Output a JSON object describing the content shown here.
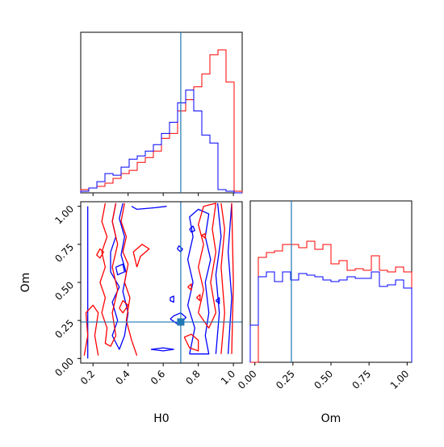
{
  "chart_data": [
    {
      "type": "histogram",
      "panel": "H0 marginal",
      "xlim": [
        0.13,
        1.05
      ],
      "truth_x": 0.7,
      "series": [
        {
          "color": "#ff0000",
          "bin_edges": [
            0.13,
            0.176,
            0.222,
            0.268,
            0.314,
            0.36,
            0.406,
            0.452,
            0.498,
            0.544,
            0.59,
            0.636,
            0.682,
            0.728,
            0.774,
            0.82,
            0.866,
            0.912,
            0.958,
            1.004,
            1.05
          ],
          "values": [
            0.02,
            0.03,
            0.04,
            0.06,
            0.09,
            0.12,
            0.14,
            0.19,
            0.22,
            0.26,
            0.34,
            0.37,
            0.51,
            0.58,
            0.66,
            0.74,
            0.86,
            0.89,
            0.69,
            0.01
          ]
        },
        {
          "color": "#0000ff",
          "bin_edges": [
            0.13,
            0.176,
            0.222,
            0.268,
            0.314,
            0.36,
            0.406,
            0.452,
            0.498,
            0.544,
            0.59,
            0.636,
            0.682,
            0.728,
            0.774,
            0.82,
            0.866,
            0.912,
            0.958,
            1.004,
            1.05
          ],
          "values": [
            0.01,
            0.03,
            0.07,
            0.12,
            0.11,
            0.16,
            0.21,
            0.23,
            0.26,
            0.3,
            0.37,
            0.44,
            0.56,
            0.64,
            0.51,
            0.36,
            0.31,
            0.02,
            0.01,
            0.0
          ]
        }
      ]
    },
    {
      "type": "histogram",
      "panel": "Om marginal",
      "xlim": [
        -0.03,
        1.03
      ],
      "truth_x": 0.24,
      "series": [
        {
          "color": "#ff0000",
          "bin_edges": [
            -0.03,
            0.023,
            0.076,
            0.129,
            0.182,
            0.235,
            0.288,
            0.341,
            0.394,
            0.447,
            0.5,
            0.553,
            0.606,
            0.659,
            0.712,
            0.765,
            0.818,
            0.871,
            0.924,
            0.977,
            1.03
          ],
          "values": [
            0.0,
            0.65,
            0.68,
            0.69,
            0.73,
            0.73,
            0.71,
            0.75,
            0.7,
            0.73,
            0.61,
            0.63,
            0.57,
            0.58,
            0.57,
            0.66,
            0.57,
            0.56,
            0.59,
            0.56
          ]
        },
        {
          "color": "#0000ff",
          "bin_edges": [
            -0.03,
            0.023,
            0.076,
            0.129,
            0.182,
            0.235,
            0.288,
            0.341,
            0.394,
            0.447,
            0.5,
            0.553,
            0.606,
            0.659,
            0.712,
            0.765,
            0.818,
            0.871,
            0.924,
            0.977,
            1.03
          ],
          "values": [
            0.23,
            0.53,
            0.56,
            0.5,
            0.56,
            0.51,
            0.55,
            0.54,
            0.53,
            0.51,
            0.5,
            0.51,
            0.53,
            0.52,
            0.52,
            0.56,
            0.47,
            0.48,
            0.51,
            0.46
          ]
        }
      ]
    },
    {
      "type": "contour",
      "panel": "Om vs H0",
      "xlabel": "H0",
      "ylabel": "Om",
      "xlim": [
        0.13,
        1.05
      ],
      "ylim": [
        -0.03,
        1.03
      ],
      "xticks": [
        "0.2",
        "0.4",
        "0.6",
        "0.8",
        "1.0"
      ],
      "xtick_values": [
        0.2,
        0.4,
        0.6,
        0.8,
        1.0
      ],
      "yticks": [
        "0.00",
        "0.25",
        "0.50",
        "0.75",
        "1.00"
      ],
      "ytick_values": [
        0.0,
        0.25,
        0.5,
        0.75,
        1.0
      ],
      "truth": [
        0.7,
        0.24
      ],
      "contours": [
        {
          "color": "#0000ff",
          "points": [
            [
              0.33,
              1.02
            ],
            [
              0.31,
              0.9
            ],
            [
              0.33,
              0.8
            ],
            [
              0.3,
              0.7
            ],
            [
              0.3,
              0.57
            ],
            [
              0.35,
              0.47
            ],
            [
              0.31,
              0.37
            ],
            [
              0.34,
              0.25
            ],
            [
              0.31,
              0.15
            ],
            [
              0.35,
              0.06
            ],
            [
              0.38,
              0.15
            ],
            [
              0.4,
              0.3
            ],
            [
              0.37,
              0.44
            ],
            [
              0.39,
              0.56
            ],
            [
              0.36,
              0.68
            ],
            [
              0.38,
              0.8
            ],
            [
              0.35,
              0.92
            ],
            [
              0.37,
              1.02
            ]
          ]
        },
        {
          "color": "#0000ff",
          "points": [
            [
              0.17,
              1.0
            ],
            [
              0.17,
              0.0
            ]
          ]
        },
        {
          "color": "#0000ff",
          "points": [
            [
              0.42,
              1.0
            ],
            [
              0.45,
              0.98
            ],
            [
              0.55,
              0.99
            ],
            [
              0.62,
              1.0
            ]
          ]
        },
        {
          "color": "#0000ff",
          "points": [
            [
              0.53,
              0.06
            ],
            [
              0.6,
              0.05
            ],
            [
              0.66,
              0.06
            ],
            [
              0.6,
              0.07
            ],
            [
              0.53,
              0.06
            ]
          ]
        },
        {
          "color": "#0000ff",
          "points": [
            [
              0.75,
              0.03
            ],
            [
              0.78,
              0.2
            ],
            [
              0.74,
              0.35
            ],
            [
              0.77,
              0.5
            ],
            [
              0.74,
              0.65
            ],
            [
              0.77,
              0.8
            ],
            [
              0.75,
              0.93
            ],
            [
              0.8,
              0.98
            ],
            [
              0.86,
              0.95
            ],
            [
              0.84,
              0.8
            ],
            [
              0.87,
              0.65
            ],
            [
              0.84,
              0.5
            ],
            [
              0.86,
              0.3
            ],
            [
              0.84,
              0.15
            ],
            [
              0.86,
              0.03
            ],
            [
              0.75,
              0.03
            ]
          ]
        },
        {
          "color": "#0000ff",
          "points": [
            [
              0.9,
              0.03
            ],
            [
              0.92,
              0.3
            ],
            [
              0.9,
              0.55
            ],
            [
              0.93,
              0.8
            ],
            [
              0.91,
              1.02
            ]
          ]
        },
        {
          "color": "#0000ff",
          "points": [
            [
              0.97,
              0.03
            ],
            [
              0.99,
              0.4
            ],
            [
              0.97,
              0.7
            ],
            [
              0.99,
              1.02
            ]
          ]
        },
        {
          "color": "#0000ff",
          "points": [
            [
              0.68,
              0.72
            ],
            [
              0.7,
              0.7
            ],
            [
              0.71,
              0.72
            ],
            [
              0.69,
              0.74
            ],
            [
              0.68,
              0.72
            ]
          ]
        },
        {
          "color": "#0000ff",
          "points": [
            [
              0.64,
              0.26
            ],
            [
              0.66,
              0.28
            ],
            [
              0.7,
              0.3
            ],
            [
              0.73,
              0.27
            ],
            [
              0.69,
              0.22
            ],
            [
              0.64,
              0.26
            ]
          ]
        },
        {
          "color": "#0000ff",
          "points": [
            [
              0.64,
              0.4
            ],
            [
              0.66,
              0.41
            ],
            [
              0.66,
              0.37
            ],
            [
              0.64,
              0.38
            ],
            [
              0.64,
              0.4
            ]
          ]
        },
        {
          "color": "#0000ff",
          "points": [
            [
              0.33,
              0.6
            ],
            [
              0.37,
              0.62
            ],
            [
              0.38,
              0.57
            ],
            [
              0.34,
              0.55
            ],
            [
              0.33,
              0.6
            ]
          ]
        },
        {
          "color": "#0000ff",
          "points": [
            [
              0.75,
              0.85
            ],
            [
              0.77,
              0.87
            ],
            [
              0.78,
              0.84
            ],
            [
              0.76,
              0.83
            ],
            [
              0.75,
              0.85
            ]
          ]
        },
        {
          "color": "#0000ff",
          "points": [
            [
              0.9,
              0.38
            ],
            [
              0.92,
              0.4
            ],
            [
              0.92,
              0.36
            ],
            [
              0.9,
              0.38
            ]
          ]
        },
        {
          "color": "#ff0000",
          "points": [
            [
              0.15,
              0.02
            ],
            [
              0.17,
              0.15
            ],
            [
              0.16,
              0.3
            ],
            [
              0.2,
              0.35
            ],
            [
              0.23,
              0.3
            ],
            [
              0.21,
              0.15
            ],
            [
              0.23,
              0.02
            ]
          ]
        },
        {
          "color": "#ff0000",
          "points": [
            [
              0.27,
              1.02
            ],
            [
              0.25,
              0.9
            ],
            [
              0.28,
              0.8
            ],
            [
              0.25,
              0.7
            ],
            [
              0.27,
              0.6
            ],
            [
              0.24,
              0.5
            ],
            [
              0.27,
              0.4
            ],
            [
              0.25,
              0.3
            ],
            [
              0.28,
              0.2
            ],
            [
              0.27,
              0.1
            ],
            [
              0.3,
              0.08
            ],
            [
              0.33,
              0.15
            ],
            [
              0.31,
              0.3
            ],
            [
              0.34,
              0.45
            ],
            [
              0.31,
              0.6
            ],
            [
              0.34,
              0.75
            ],
            [
              0.31,
              0.9
            ],
            [
              0.33,
              1.02
            ]
          ]
        },
        {
          "color": "#ff0000",
          "points": [
            [
              0.38,
              1.02
            ],
            [
              0.36,
              0.9
            ],
            [
              0.39,
              0.8
            ],
            [
              0.37,
              0.7
            ],
            [
              0.4,
              0.62
            ],
            [
              0.38,
              0.5
            ],
            [
              0.41,
              0.4
            ],
            [
              0.39,
              0.25
            ],
            [
              0.42,
              0.12
            ],
            [
              0.45,
              0.02
            ]
          ]
        },
        {
          "color": "#ff0000",
          "points": [
            [
              0.45,
              0.6
            ],
            [
              0.43,
              0.7
            ],
            [
              0.48,
              0.75
            ],
            [
              0.52,
              0.72
            ],
            [
              0.47,
              0.67
            ],
            [
              0.45,
              0.6
            ]
          ]
        },
        {
          "color": "#ff0000",
          "points": [
            [
              0.22,
              0.68
            ],
            [
              0.24,
              0.72
            ],
            [
              0.26,
              0.7
            ],
            [
              0.24,
              0.66
            ],
            [
              0.22,
              0.68
            ]
          ]
        },
        {
          "color": "#ff0000",
          "points": [
            [
              0.35,
              0.33
            ],
            [
              0.37,
              0.38
            ],
            [
              0.4,
              0.35
            ],
            [
              0.37,
              0.3
            ],
            [
              0.35,
              0.33
            ]
          ]
        },
        {
          "color": "#ff0000",
          "points": [
            [
              0.72,
              0.14
            ],
            [
              0.75,
              0.07
            ],
            [
              0.8,
              0.05
            ],
            [
              0.8,
              0.12
            ],
            [
              0.76,
              0.16
            ],
            [
              0.72,
              0.14
            ]
          ]
        },
        {
          "color": "#ff0000",
          "points": [
            [
              0.8,
              0.3
            ],
            [
              0.83,
              0.45
            ],
            [
              0.8,
              0.6
            ],
            [
              0.83,
              0.75
            ],
            [
              0.8,
              0.88
            ],
            [
              0.83,
              1.0
            ],
            [
              0.9,
              1.02
            ],
            [
              0.88,
              0.85
            ],
            [
              0.9,
              0.7
            ],
            [
              0.87,
              0.5
            ],
            [
              0.9,
              0.3
            ],
            [
              0.86,
              0.2
            ],
            [
              0.8,
              0.3
            ]
          ]
        },
        {
          "color": "#ff0000",
          "points": [
            [
              0.93,
              0.03
            ],
            [
              0.95,
              0.3
            ],
            [
              0.93,
              0.6
            ],
            [
              0.95,
              0.85
            ],
            [
              0.93,
              1.02
            ]
          ]
        },
        {
          "color": "#ff0000",
          "points": [
            [
              0.99,
              0.03
            ],
            [
              1.0,
              0.5
            ],
            [
              0.99,
              1.02
            ]
          ]
        },
        {
          "color": "#ff0000",
          "points": [
            [
              0.74,
              0.47
            ],
            [
              0.76,
              0.49
            ],
            [
              0.76,
              0.45
            ],
            [
              0.74,
              0.47
            ]
          ]
        },
        {
          "color": "#ff0000",
          "points": [
            [
              0.79,
              0.4
            ],
            [
              0.81,
              0.42
            ],
            [
              0.81,
              0.38
            ],
            [
              0.79,
              0.4
            ]
          ]
        },
        {
          "color": "#ff0000",
          "points": [
            [
              0.82,
              0.81
            ],
            [
              0.84,
              0.82
            ],
            [
              0.84,
              0.79
            ],
            [
              0.82,
              0.81
            ]
          ]
        }
      ]
    },
    {
      "type": "axis-labels",
      "panel": "Om marginal x-axis",
      "xlabel": "Om",
      "xticks": [
        "0.00",
        "0.25",
        "0.50",
        "0.75",
        "1.00"
      ],
      "xtick_values": [
        0.0,
        0.25,
        0.5,
        0.75,
        1.0
      ]
    }
  ],
  "colors": {
    "truth_line": "#1f77b4",
    "series_a": "#ff0000",
    "series_b": "#0000ff"
  }
}
